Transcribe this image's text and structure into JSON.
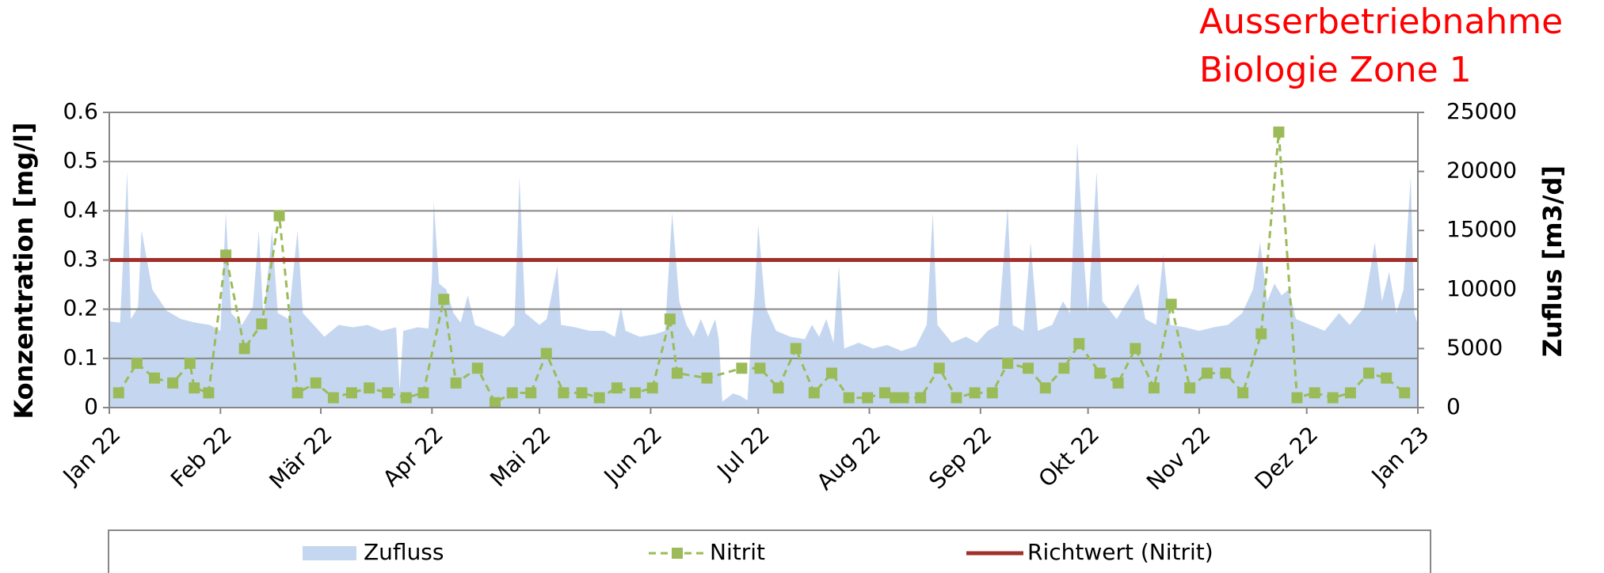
{
  "chart_data": {
    "type": "line",
    "annotation": [
      "Ausserbetriebnahme",
      "Biologie Zone 1"
    ],
    "ylabel": "Konzentration [mg/l]",
    "y2label": "Zuflus [m3/d]",
    "xlim": [
      0,
      365
    ],
    "xticks": [
      {
        "value": 0,
        "label": "Jan 22"
      },
      {
        "value": 31,
        "label": "Feb 22"
      },
      {
        "value": 59,
        "label": "Mär 22"
      },
      {
        "value": 90,
        "label": "Apr 22"
      },
      {
        "value": 120,
        "label": "Mai 22"
      },
      {
        "value": 151,
        "label": "Jun 22"
      },
      {
        "value": 181,
        "label": "Jul 22"
      },
      {
        "value": 212,
        "label": "Aug 22"
      },
      {
        "value": 243,
        "label": "Sep 22"
      },
      {
        "value": 273,
        "label": "Okt 22"
      },
      {
        "value": 304,
        "label": "Nov 22"
      },
      {
        "value": 334,
        "label": "Dez 22"
      },
      {
        "value": 365,
        "label": "Jan 23"
      }
    ],
    "ylim": [
      0,
      0.6
    ],
    "yticks": [
      0,
      0.1,
      0.2,
      0.3,
      0.4,
      0.5,
      0.6
    ],
    "y2lim": [
      0,
      25000
    ],
    "y2ticks": [
      0,
      5000,
      10000,
      15000,
      20000,
      25000
    ],
    "grid": true,
    "legend": "bottom",
    "series": [
      {
        "name": "Zufluss",
        "color": "#c5d7f0",
        "axis": "y2",
        "kind": "area",
        "x": [
          0,
          3,
          5,
          6,
          8,
          9,
          12,
          16,
          20,
          24,
          28,
          31,
          32.5,
          34,
          37,
          40,
          41.7,
          43,
          45.4,
          47,
          50,
          52.5,
          54,
          57,
          60,
          64,
          68,
          72,
          76,
          80,
          81,
          82,
          86,
          89,
          90,
          90.5,
          92,
          94,
          96,
          98,
          100,
          102,
          106,
          110,
          113,
          114.4,
          116,
          120,
          122,
          125,
          126,
          130,
          134,
          138,
          141,
          142.7,
          144,
          148,
          152,
          155,
          157,
          159,
          161,
          163,
          165,
          167,
          169,
          170,
          171,
          174,
          176,
          178,
          179,
          180,
          181,
          183,
          186,
          190,
          194,
          196,
          198,
          200,
          202,
          203.5,
          205,
          209,
          213,
          217,
          221,
          225,
          228,
          229.7,
          231,
          235,
          239,
          242,
          245,
          248,
          250.6,
          252,
          255,
          257,
          259,
          263,
          266,
          268,
          270,
          272,
          273,
          275.4,
          277,
          281,
          284,
          287,
          289,
          292,
          294,
          296,
          300,
          304,
          308,
          312,
          316,
          319,
          321,
          323,
          325,
          327,
          329,
          331,
          335,
          339,
          343,
          346,
          350,
          353,
          355,
          357,
          359,
          361,
          363,
          364,
          365
        ],
        "values": [
          7300,
          7200,
          20000,
          7500,
          8500,
          15000,
          10000,
          8200,
          7500,
          7200,
          7000,
          6500,
          16500,
          8000,
          7000,
          8500,
          15000,
          7500,
          15000,
          8000,
          7500,
          15000,
          8000,
          7000,
          6000,
          7000,
          6800,
          7000,
          6500,
          6800,
          1500,
          6500,
          6800,
          6700,
          11000,
          17500,
          10500,
          10000,
          8000,
          7200,
          9500,
          7000,
          6500,
          6000,
          7000,
          19500,
          8000,
          7000,
          7500,
          12000,
          7000,
          6800,
          6500,
          6500,
          6000,
          8500,
          6500,
          6000,
          6200,
          6500,
          16500,
          9000,
          7000,
          6000,
          7500,
          6000,
          7500,
          5800,
          500,
          1200,
          1000,
          600,
          6000,
          9500,
          15500,
          8500,
          6500,
          6000,
          5800,
          7000,
          6000,
          7500,
          5500,
          12000,
          5000,
          5500,
          5000,
          5300,
          4800,
          5200,
          7000,
          16500,
          7000,
          5500,
          6000,
          5500,
          6500,
          7000,
          17000,
          7000,
          6500,
          14000,
          6500,
          7000,
          9000,
          8000,
          22500,
          12000,
          8000,
          20000,
          9000,
          7500,
          9000,
          10500,
          7500,
          7000,
          13000,
          7000,
          6800,
          6500,
          6800,
          7000,
          8000,
          10000,
          14000,
          9000,
          10500,
          9500,
          10000,
          7500,
          7000,
          6500,
          8000,
          7000,
          8500,
          14000,
          9000,
          11500,
          8000,
          10000,
          19500,
          8000,
          7000
        ]
      },
      {
        "name": "Nitrit",
        "color": "#9bbb59",
        "kind": "markers-dashed",
        "x": [
          2.6,
          7.7,
          12.6,
          17.7,
          22.5,
          23.7,
          27.7,
          32.5,
          37.7,
          42.5,
          47.4,
          52.5,
          57.6,
          62.5,
          67.6,
          72.5,
          77.6,
          82.8,
          87.6,
          93.3,
          96.7,
          102.7,
          107.6,
          112.4,
          117.6,
          121.9,
          126.7,
          131.8,
          136.7,
          141.6,
          146.7,
          151.5,
          156.4,
          158.4,
          166.7,
          176.4,
          181.5,
          186.6,
          191.5,
          196.6,
          201.5,
          206.3,
          211.5,
          216.3,
          219.2,
          221.5,
          226.3,
          231.5,
          236.3,
          241.4,
          246.3,
          250.6,
          256.3,
          261.1,
          266.3,
          270.5,
          276.3,
          281.4,
          286.2,
          291.4,
          296.2,
          301.4,
          306.2,
          311.4,
          316.2,
          321.3,
          326.2,
          331.3,
          336.2,
          341.3,
          346.2,
          351.3,
          356.2,
          361.3
        ],
        "values": [
          0.03,
          0.09,
          0.06,
          0.05,
          0.09,
          0.04,
          0.03,
          0.31,
          0.12,
          0.17,
          0.39,
          0.03,
          0.05,
          0.02,
          0.03,
          0.04,
          0.03,
          0.02,
          0.03,
          0.22,
          0.05,
          0.08,
          0.01,
          0.03,
          0.03,
          0.11,
          0.03,
          0.03,
          0.02,
          0.04,
          0.03,
          0.04,
          0.18,
          0.07,
          0.06,
          0.08,
          0.08,
          0.04,
          0.12,
          0.03,
          0.07,
          0.02,
          0.02,
          0.03,
          0.02,
          0.02,
          0.02,
          0.08,
          0.02,
          0.03,
          0.03,
          0.09,
          0.08,
          0.04,
          0.08,
          0.13,
          0.07,
          0.05,
          0.12,
          0.04,
          0.21,
          0.04,
          0.07,
          0.07,
          0.03,
          0.15,
          0.56,
          0.02,
          0.03,
          0.02,
          0.03,
          0.07,
          0.06,
          0.03
        ]
      },
      {
        "name": "Richtwert (Nitrit)",
        "color": "#a0302c",
        "kind": "solid",
        "x": [
          0,
          365
        ],
        "values": [
          0.3,
          0.3
        ]
      }
    ]
  }
}
